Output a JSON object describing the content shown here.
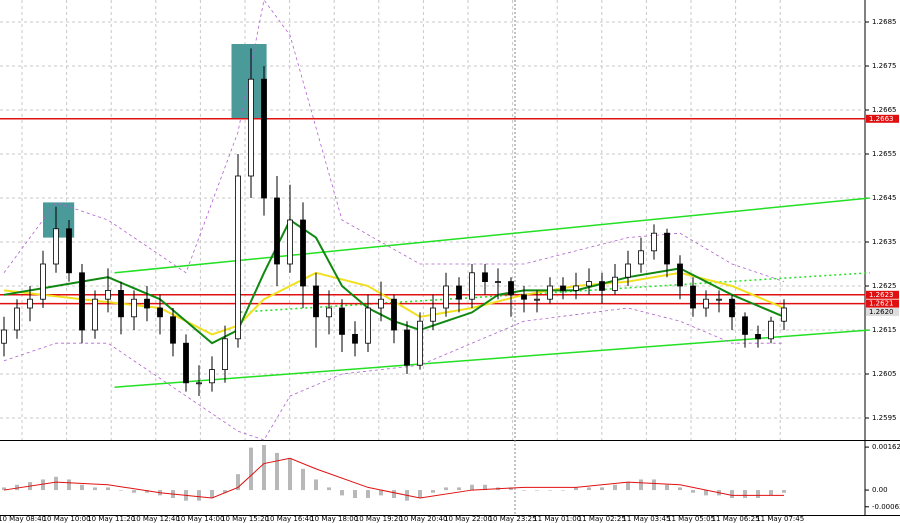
{
  "chart_data": {
    "type": "candlestick",
    "ylim": [
      1.259,
      1.269
    ],
    "yticks": [
      1.2685,
      1.2675,
      1.2665,
      1.2655,
      1.2645,
      1.2635,
      1.2625,
      1.2615,
      1.2605,
      1.2595
    ],
    "grid": true,
    "x_labels": [
      "10 May 08:40",
      "10 May 10:00",
      "10 May 11:20",
      "10 May 12:40",
      "10 May 14:00",
      "10 May 15:20",
      "10 May 16:40",
      "10 May 18:00",
      "10 May 19:20",
      "10 May 20:40",
      "10 May 22:00",
      "10 May 23:25",
      "11 May 01:00",
      "11 May 02:25",
      "11 May 03:45",
      "11 May 05:05",
      "11 May 06:25",
      "11 May 07:45"
    ],
    "ohlc": [
      [
        1.2612,
        1.2618,
        1.2609,
        1.2615
      ],
      [
        1.2615,
        1.2622,
        1.2613,
        1.262
      ],
      [
        1.262,
        1.2625,
        1.2617,
        1.2622
      ],
      [
        1.2622,
        1.2633,
        1.262,
        1.263
      ],
      [
        1.263,
        1.2643,
        1.2628,
        1.2638
      ],
      [
        1.2638,
        1.264,
        1.2626,
        1.2628
      ],
      [
        1.2628,
        1.263,
        1.2612,
        1.2615
      ],
      [
        1.2615,
        1.2624,
        1.2613,
        1.2622
      ],
      [
        1.2622,
        1.2629,
        1.2619,
        1.2624
      ],
      [
        1.2624,
        1.2626,
        1.2614,
        1.2618
      ],
      [
        1.2618,
        1.2624,
        1.2615,
        1.2622
      ],
      [
        1.2622,
        1.2625,
        1.2617,
        1.262
      ],
      [
        1.262,
        1.2623,
        1.2614,
        1.2618
      ],
      [
        1.2618,
        1.262,
        1.2609,
        1.2612
      ],
      [
        1.2612,
        1.2614,
        1.2601,
        1.2603
      ],
      [
        1.2603,
        1.2607,
        1.26,
        1.2603
      ],
      [
        1.2603,
        1.2609,
        1.2601,
        1.2606
      ],
      [
        1.2606,
        1.2616,
        1.2603,
        1.2613
      ],
      [
        1.2613,
        1.2655,
        1.2611,
        1.265
      ],
      [
        1.265,
        1.2679,
        1.2645,
        1.2672
      ],
      [
        1.2672,
        1.2675,
        1.2641,
        1.2645
      ],
      [
        1.2645,
        1.265,
        1.2625,
        1.263
      ],
      [
        1.263,
        1.2648,
        1.2628,
        1.264
      ],
      [
        1.264,
        1.2644,
        1.262,
        1.2625
      ],
      [
        1.2625,
        1.2628,
        1.2611,
        1.2618
      ],
      [
        1.2618,
        1.2624,
        1.2614,
        1.262
      ],
      [
        1.262,
        1.2622,
        1.261,
        1.2614
      ],
      [
        1.2614,
        1.2617,
        1.2609,
        1.2612
      ],
      [
        1.2612,
        1.2623,
        1.261,
        1.262
      ],
      [
        1.262,
        1.2626,
        1.2617,
        1.2622
      ],
      [
        1.2622,
        1.2623,
        1.2612,
        1.2615
      ],
      [
        1.2615,
        1.2617,
        1.2605,
        1.2607
      ],
      [
        1.2607,
        1.2619,
        1.2606,
        1.2617
      ],
      [
        1.2617,
        1.2623,
        1.2615,
        1.262
      ],
      [
        1.262,
        1.2628,
        1.2618,
        1.2625
      ],
      [
        1.2625,
        1.2627,
        1.2619,
        1.2622
      ],
      [
        1.2622,
        1.263,
        1.262,
        1.2628
      ],
      [
        1.2628,
        1.263,
        1.2623,
        1.2626
      ],
      [
        1.2626,
        1.2629,
        1.2622,
        1.2626
      ],
      [
        1.2626,
        1.2627,
        1.2618,
        1.2623
      ],
      [
        1.2623,
        1.2625,
        1.2619,
        1.2622
      ],
      [
        1.2622,
        1.2624,
        1.2619,
        1.2622
      ],
      [
        1.2622,
        1.2627,
        1.2621,
        1.2625
      ],
      [
        1.2625,
        1.2627,
        1.2622,
        1.2624
      ],
      [
        1.2624,
        1.2628,
        1.2622,
        1.2625
      ],
      [
        1.2625,
        1.2629,
        1.2623,
        1.2626
      ],
      [
        1.2626,
        1.2628,
        1.2621,
        1.2624
      ],
      [
        1.2624,
        1.263,
        1.2623,
        1.2627
      ],
      [
        1.2627,
        1.2633,
        1.2625,
        1.263
      ],
      [
        1.263,
        1.2636,
        1.2628,
        1.2633
      ],
      [
        1.2633,
        1.2639,
        1.2631,
        1.2637
      ],
      [
        1.2637,
        1.2638,
        1.2627,
        1.263
      ],
      [
        1.263,
        1.2632,
        1.2622,
        1.2625
      ],
      [
        1.2625,
        1.2627,
        1.2618,
        1.262
      ],
      [
        1.262,
        1.2624,
        1.2618,
        1.2622
      ],
      [
        1.2622,
        1.2624,
        1.2619,
        1.2622
      ],
      [
        1.2622,
        1.2623,
        1.2615,
        1.2618
      ],
      [
        1.2618,
        1.2619,
        1.2611,
        1.2614
      ],
      [
        1.2614,
        1.2616,
        1.2611,
        1.2613
      ],
      [
        1.2613,
        1.2618,
        1.2612,
        1.2617
      ],
      [
        1.2617,
        1.2622,
        1.2615,
        1.262
      ]
    ],
    "series": [
      {
        "color": "#b060d0",
        "style": "dashed",
        "x": [
          0,
          4,
          8,
          14,
          18,
          20,
          22,
          26,
          32,
          40,
          48,
          52,
          56,
          60
        ],
        "values": [
          1.2628,
          1.2644,
          1.264,
          1.2628,
          1.266,
          1.269,
          1.2682,
          1.264,
          1.263,
          1.263,
          1.2636,
          1.2637,
          1.263,
          1.2626
        ]
      },
      {
        "color": "#b060d0",
        "style": "dashed",
        "x": [
          0,
          4,
          8,
          14,
          18,
          20,
          22,
          26,
          32,
          40,
          48,
          52,
          56,
          60
        ],
        "values": [
          1.2608,
          1.2612,
          1.2612,
          1.26,
          1.2592,
          1.259,
          1.26,
          1.2605,
          1.2607,
          1.2617,
          1.262,
          1.2617,
          1.2612,
          1.2612
        ]
      },
      {
        "color": "#f0e020",
        "style": "solid",
        "x": [
          0,
          6,
          12,
          16,
          18,
          20,
          24,
          28,
          32,
          36,
          40,
          44,
          48,
          52,
          56,
          60
        ],
        "values": [
          1.2624,
          1.2622,
          1.262,
          1.2614,
          1.2616,
          1.2622,
          1.2628,
          1.2625,
          1.2618,
          1.262,
          1.2623,
          1.2625,
          1.2626,
          1.2628,
          1.2625,
          1.262
        ]
      },
      {
        "color": "#118811",
        "style": "solid",
        "x": [
          0,
          4,
          8,
          12,
          16,
          18,
          20,
          22,
          24,
          26,
          28,
          30,
          32,
          34,
          36,
          38,
          40,
          44,
          48,
          52,
          56,
          60
        ],
        "values": [
          1.2623,
          1.2625,
          1.2627,
          1.2622,
          1.2612,
          1.2615,
          1.2628,
          1.264,
          1.2636,
          1.2625,
          1.262,
          1.2617,
          1.2615,
          1.2617,
          1.2619,
          1.2623,
          1.2624,
          1.2624,
          1.2627,
          1.2629,
          1.2623,
          1.2618
        ]
      }
    ],
    "trendlines": [
      {
        "color": "#22e022",
        "style": "solid",
        "x": [
          8.5,
          66.6
        ],
        "values": [
          1.2628,
          1.2645
        ]
      },
      {
        "color": "#22e022",
        "style": "solid",
        "x": [
          8.5,
          66.6
        ],
        "values": [
          1.2602,
          1.2615
        ]
      },
      {
        "color": "#22e022",
        "style": "dotted",
        "x": [
          17.8,
          66.6
        ],
        "values": [
          1.2619,
          1.2628
        ]
      }
    ],
    "boxes": [
      {
        "color": "#4a9a9a",
        "x": [
          3,
          5.4
        ],
        "values": [
          1.2636,
          1.2644
        ]
      },
      {
        "color": "#4a9a9a",
        "x": [
          17.5,
          20.2
        ],
        "values": [
          1.2663,
          1.268
        ]
      }
    ],
    "levels": [
      {
        "value": 1.2663,
        "color": "#e01010"
      },
      {
        "value": 1.2623,
        "color": "#e01010"
      },
      {
        "value": 1.2621,
        "color": "#e01010"
      }
    ],
    "last_price": {
      "value": 1.262,
      "label": "1.2620"
    },
    "oscillator": {
      "ylim": [
        -0.00094,
        0.00185
      ],
      "yticks": [
        0.00162,
        {
          "value": 0,
          "label": "0.00"
        },
        -0.00063
      ],
      "color": "#b8b8b8",
      "values": [
        0.0001,
        0.0002,
        0.0003,
        0.0004,
        0.0005,
        0.0004,
        0.0002,
        0.0001,
        0.0001,
        0,
        -0.0001,
        -0.0001,
        -0.0002,
        -0.0003,
        -0.0004,
        -0.0004,
        -0.0003,
        -0.0001,
        0.0006,
        0.0016,
        0.0017,
        0.0014,
        0.0012,
        0.0008,
        0.0004,
        0.0001,
        -0.0002,
        -0.0003,
        -0.0003,
        -0.0002,
        -0.0003,
        -0.0004,
        -0.0003,
        -0.0001,
        0.0001,
        0.0001,
        0.0002,
        0.0002,
        0.0001,
        0.0001,
        0,
        0,
        0,
        0,
        0.0001,
        0.0001,
        0.0001,
        0.0002,
        0.0003,
        0.0004,
        0.0004,
        0.0002,
        0.0001,
        -0.0001,
        -0.0002,
        -0.0002,
        -0.0003,
        -0.0003,
        -0.0003,
        -0.0002,
        -0.0001
      ],
      "signal": {
        "color": "#e01010",
        "x": [
          0,
          4,
          8,
          12,
          16,
          18,
          20,
          22,
          24,
          28,
          32,
          36,
          40,
          44,
          48,
          52,
          56,
          60
        ],
        "values": [
          0,
          0.0003,
          0.0002,
          -0.0001,
          -0.0003,
          0.0001,
          0.001,
          0.0012,
          0.0008,
          0.0001,
          -0.0003,
          0,
          0.0001,
          0.0001,
          0.0003,
          0.0002,
          -0.0002,
          -0.0002
        ]
      }
    }
  }
}
